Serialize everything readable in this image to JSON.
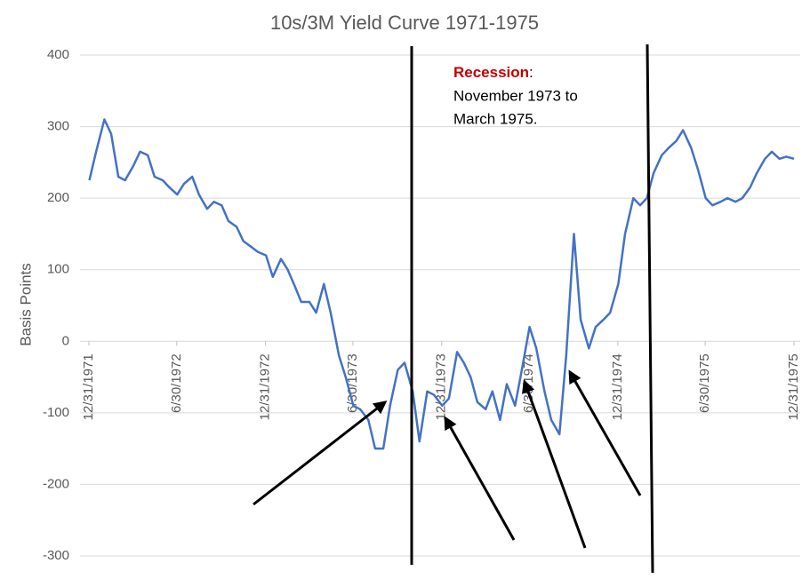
{
  "chart_data": {
    "type": "line",
    "title": "10s/3M Yield Curve 1971-1975",
    "y_label": "Basis Points",
    "xlim": [
      "1971-12-31",
      "1975-12-31"
    ],
    "xticks": [
      {
        "value": "1971-12-31",
        "label": "12/31/1971"
      },
      {
        "value": "1972-06-30",
        "label": "6/30/1972"
      },
      {
        "value": "1972-12-31",
        "label": "12/31/1972"
      },
      {
        "value": "1973-06-30",
        "label": "6/30/1973"
      },
      {
        "value": "1973-12-31",
        "label": "12/31/1973"
      },
      {
        "value": "1974-06-30",
        "label": "6/30/1974"
      },
      {
        "value": "1974-12-31",
        "label": "12/31/1974"
      },
      {
        "value": "1975-06-30",
        "label": "6/30/1975"
      },
      {
        "value": "1975-12-31",
        "label": "12/31/1975"
      }
    ],
    "ylim": [
      -300,
      400
    ],
    "yticks": [
      -300,
      -200,
      -100,
      0,
      100,
      200,
      300,
      400
    ],
    "grid": true,
    "x": [
      "1972-01-01",
      "1972-01-15",
      "1972-02-01",
      "1972-02-15",
      "1972-03-01",
      "1972-03-15",
      "1972-04-01",
      "1972-04-15",
      "1972-05-01",
      "1972-05-15",
      "1972-06-01",
      "1972-06-15",
      "1972-07-01",
      "1972-07-15",
      "1972-08-01",
      "1972-08-15",
      "1972-09-01",
      "1972-09-15",
      "1972-10-01",
      "1972-10-15",
      "1972-11-01",
      "1972-11-15",
      "1972-12-01",
      "1972-12-15",
      "1973-01-01",
      "1973-01-15",
      "1973-02-01",
      "1973-02-15",
      "1973-03-01",
      "1973-03-15",
      "1973-04-01",
      "1973-04-15",
      "1973-05-01",
      "1973-05-15",
      "1973-06-01",
      "1973-06-15",
      "1973-07-01",
      "1973-07-15",
      "1973-08-01",
      "1973-08-15",
      "1973-09-01",
      "1973-09-15",
      "1973-10-01",
      "1973-10-15",
      "1973-11-01",
      "1973-11-15",
      "1973-12-01",
      "1973-12-15",
      "1974-01-01",
      "1974-01-15",
      "1974-02-01",
      "1974-02-15",
      "1974-03-01",
      "1974-03-15",
      "1974-04-01",
      "1974-04-15",
      "1974-05-01",
      "1974-05-15",
      "1974-06-01",
      "1974-06-15",
      "1974-07-01",
      "1974-07-15",
      "1974-08-01",
      "1974-08-15",
      "1974-09-01",
      "1974-09-15",
      "1974-10-01",
      "1974-10-15",
      "1974-11-01",
      "1974-11-15",
      "1974-12-01",
      "1974-12-15",
      "1975-01-01",
      "1975-01-15",
      "1975-02-01",
      "1975-02-15",
      "1975-03-01",
      "1975-03-15",
      "1975-04-01",
      "1975-04-15",
      "1975-05-01",
      "1975-05-15",
      "1975-06-01",
      "1975-06-15",
      "1975-07-01",
      "1975-07-15",
      "1975-08-01",
      "1975-08-15",
      "1975-09-01",
      "1975-09-15",
      "1975-10-01",
      "1975-10-15",
      "1975-11-01",
      "1975-11-15",
      "1975-12-01",
      "1975-12-15",
      "1975-12-31"
    ],
    "series": [
      {
        "color": "#4472c4",
        "values": [
          225,
          265,
          310,
          290,
          230,
          225,
          245,
          265,
          260,
          230,
          225,
          215,
          205,
          220,
          230,
          205,
          185,
          195,
          190,
          168,
          160,
          140,
          132,
          125,
          120,
          90,
          115,
          100,
          78,
          55,
          55,
          40,
          80,
          40,
          -20,
          -50,
          -90,
          -95,
          -110,
          -150,
          -150,
          -90,
          -40,
          -30,
          -70,
          -140,
          -70,
          -75,
          -90,
          -80,
          -15,
          -30,
          -50,
          -85,
          -95,
          -70,
          -110,
          -60,
          -90,
          -40,
          20,
          -10,
          -70,
          -110,
          -130,
          -20,
          150,
          30,
          -10,
          20,
          30,
          40,
          80,
          150,
          200,
          190,
          200,
          235,
          260,
          270,
          280,
          295,
          270,
          240,
          200,
          190,
          195,
          200,
          195,
          200,
          215,
          235,
          255,
          265,
          255,
          258,
          255
        ]
      }
    ],
    "annotation": {
      "label": "Recession",
      "separator": ":",
      "lines": [
        "November 1973 to",
        "March 1975."
      ]
    }
  }
}
